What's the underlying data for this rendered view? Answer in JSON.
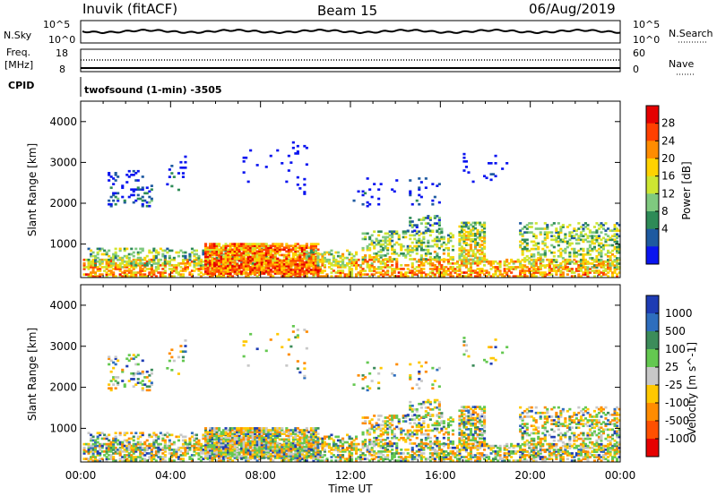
{
  "header": {
    "site": "Inuvik (fitACF)",
    "beam": "Beam 15",
    "date": "06/Aug/2019"
  },
  "top_panels": {
    "nsky_label": "N.Sky",
    "nsky_ticks": [
      "10^5",
      "10^0"
    ],
    "nsearch_label": "N.Search",
    "nsearch_ticks": [
      "10^5",
      "10^0"
    ],
    "freq_label": "Freq.",
    "freq_unit": "[MHz]",
    "freq_ticks": [
      "18",
      "8"
    ],
    "nave_label": "Nave",
    "nave_ticks": [
      "60",
      "0"
    ],
    "cpid_label": "CPID",
    "cpid_text": "twofsound (1-min) -3505"
  },
  "chart_data": [
    {
      "type": "heatmap",
      "name": "power",
      "ylabel": "Slant Range [km]",
      "xlabel": "",
      "x_ticks": [
        "00:00",
        "04:00",
        "08:00",
        "12:00",
        "16:00",
        "20:00",
        "00:00"
      ],
      "y_ticks": [
        "1000",
        "2000",
        "3000",
        "4000"
      ],
      "xlim": [
        0,
        24
      ],
      "ylim": [
        180,
        4500
      ],
      "colorbar": {
        "label": "Power [dB]",
        "tick_labels": [
          "28",
          "24",
          "20",
          "16",
          "12",
          "8",
          "4"
        ],
        "colors": [
          "#e50000",
          "#ff4000",
          "#ff8c00",
          "#ffd200",
          "#cde632",
          "#7fc97f",
          "#2e8b57",
          "#1e5aa0",
          "#0a14f0"
        ]
      }
    },
    {
      "type": "heatmap",
      "name": "velocity",
      "ylabel": "Slant Range [km]",
      "xlabel": "Time UT",
      "x_ticks": [
        "00:00",
        "04:00",
        "08:00",
        "12:00",
        "16:00",
        "20:00",
        "00:00"
      ],
      "y_ticks": [
        "1000",
        "2000",
        "3000",
        "4000"
      ],
      "xlim": [
        0,
        24
      ],
      "ylim": [
        180,
        4500
      ],
      "colorbar": {
        "label": "Velocity [m s^-1]",
        "tick_labels": [
          "1000",
          "500",
          "100",
          "25",
          "-25",
          "-100",
          "-500",
          "-1000"
        ],
        "colors": [
          "#1e3cb4",
          "#2e6ebe",
          "#3c8c5a",
          "#64c850",
          "#c8c8c8",
          "#ffc800",
          "#ff8c00",
          "#ff5000",
          "#e60000"
        ]
      }
    }
  ]
}
